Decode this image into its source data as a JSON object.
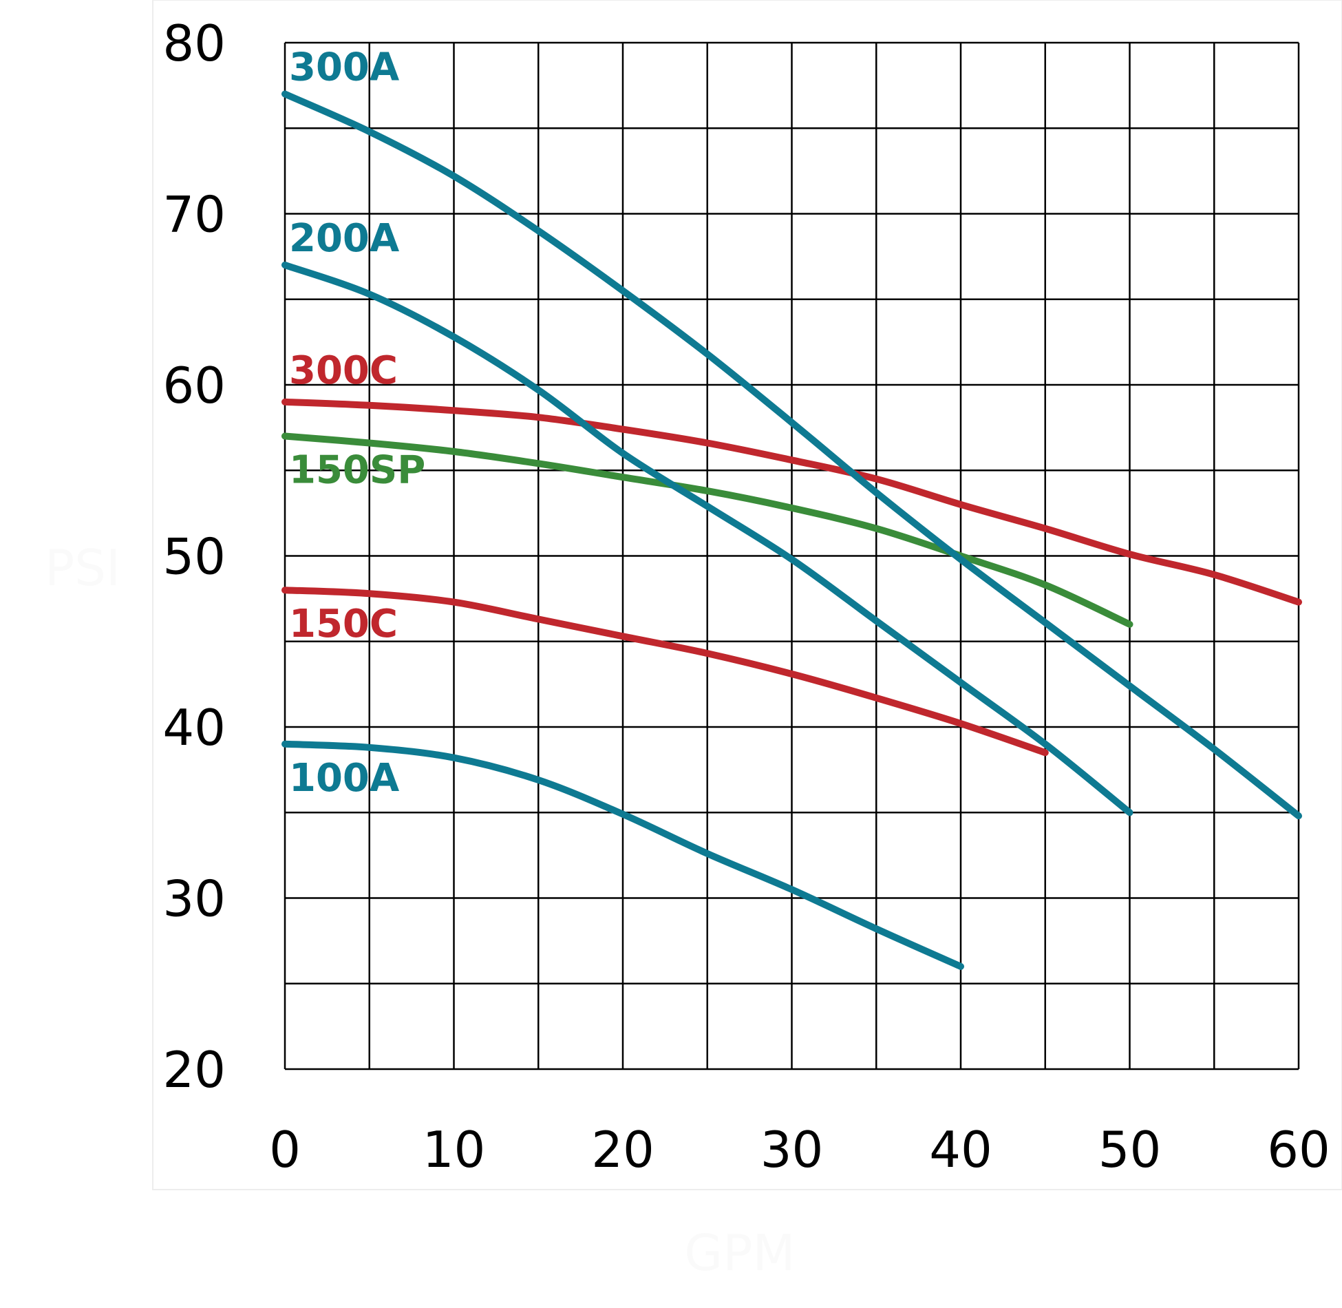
{
  "chart_data": {
    "type": "line",
    "xlabel": "GPM",
    "ylabel": "PSI",
    "xlim": [
      0,
      60
    ],
    "ylim": [
      20,
      80
    ],
    "x_ticks": [
      "0",
      "10",
      "20",
      "30",
      "40",
      "50",
      "60"
    ],
    "y_ticks": [
      "20",
      "30",
      "40",
      "50",
      "60",
      "70",
      "80"
    ],
    "x_grid_step": 5,
    "y_grid_step": 5,
    "grid": true,
    "colors": {
      "teal": "#0e7a92",
      "red": "#c0272d",
      "green": "#3a8c3a"
    },
    "series": [
      {
        "name": "300A",
        "color": "#0e7a92",
        "x": [
          0,
          5,
          10,
          15,
          20,
          25,
          30,
          35,
          40,
          45,
          50,
          55,
          60
        ],
        "y": [
          77,
          74.8,
          72.2,
          69,
          65.5,
          61.8,
          57.8,
          53.7,
          49.8,
          46.1,
          42.4,
          38.7,
          34.8
        ]
      },
      {
        "name": "200A",
        "color": "#0e7a92",
        "x": [
          0,
          5,
          10,
          15,
          20,
          25,
          30,
          35,
          40,
          45,
          50
        ],
        "y": [
          67,
          65.3,
          62.8,
          59.7,
          56,
          52.9,
          49.8,
          46.2,
          42.6,
          39,
          35
        ]
      },
      {
        "name": "300C",
        "color": "#c0272d",
        "x": [
          0,
          5,
          10,
          15,
          20,
          25,
          30,
          35,
          40,
          45,
          50,
          55,
          60
        ],
        "y": [
          59,
          58.8,
          58.5,
          58.1,
          57.4,
          56.6,
          55.6,
          54.5,
          53,
          51.6,
          50.1,
          48.9,
          47.3
        ]
      },
      {
        "name": "150SP",
        "color": "#3a8c3a",
        "x": [
          0,
          5,
          10,
          15,
          20,
          25,
          30,
          35,
          40,
          45,
          50
        ],
        "y": [
          57,
          56.6,
          56.1,
          55.4,
          54.6,
          53.8,
          52.8,
          51.6,
          50,
          48.3,
          46
        ]
      },
      {
        "name": "150C",
        "color": "#c0272d",
        "x": [
          0,
          5,
          10,
          15,
          20,
          25,
          30,
          35,
          40,
          45
        ],
        "y": [
          48,
          47.8,
          47.3,
          46.3,
          45.3,
          44.3,
          43.1,
          41.7,
          40.2,
          38.5
        ]
      },
      {
        "name": "100A",
        "color": "#0e7a92",
        "x": [
          0,
          5,
          10,
          15,
          20,
          25,
          30,
          35,
          40
        ],
        "y": [
          39,
          38.8,
          38.2,
          36.9,
          34.9,
          32.6,
          30.5,
          28.2,
          26
        ]
      }
    ]
  }
}
